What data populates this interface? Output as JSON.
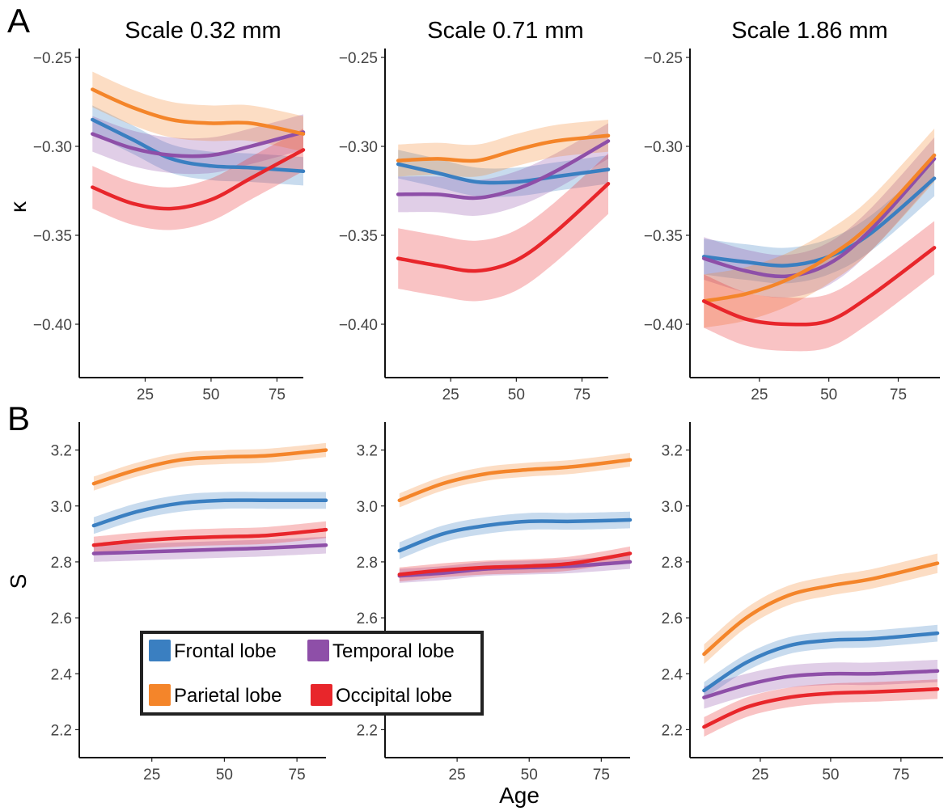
{
  "figure": {
    "row_letters": [
      "A",
      "B"
    ],
    "panel_titles": [
      "Scale 0.32 mm",
      "Scale 0.71 mm",
      "Scale 1.86 mm"
    ],
    "xlabel": "Age",
    "ylabel_top": "κ",
    "ylabel_bottom": "S",
    "legend": [
      {
        "label": "Frontal lobe",
        "color": "#3a7fc1"
      },
      {
        "label": "Temporal lobe",
        "color": "#8e4fa8"
      },
      {
        "label": "Parietal lobe",
        "color": "#f4852a"
      },
      {
        "label": "Occipital lobe",
        "color": "#e8262b"
      }
    ]
  },
  "chart_data": [
    {
      "type": "line",
      "panel": "A",
      "title": "Scale 0.32 mm",
      "xlabel": "",
      "ylabel": "κ",
      "xlim": [
        0,
        85
      ],
      "ylim": [
        -0.43,
        -0.245
      ],
      "xticks": [
        25,
        50,
        75
      ],
      "yticks": [
        -0.25,
        -0.3,
        -0.35,
        -0.4
      ],
      "x": [
        5,
        20,
        35,
        50,
        65,
        85
      ],
      "series": [
        {
          "name": "Frontal lobe",
          "color": "#3a7fc1",
          "values": [
            -0.285,
            -0.296,
            -0.307,
            -0.311,
            -0.312,
            -0.314
          ],
          "band": 0.008
        },
        {
          "name": "Temporal lobe",
          "color": "#8e4fa8",
          "values": [
            -0.293,
            -0.301,
            -0.305,
            -0.305,
            -0.3,
            -0.292
          ],
          "band": 0.01
        },
        {
          "name": "Parietal lobe",
          "color": "#f4852a",
          "values": [
            -0.268,
            -0.278,
            -0.285,
            -0.287,
            -0.287,
            -0.293
          ],
          "band": 0.01
        },
        {
          "name": "Occipital lobe",
          "color": "#e8262b",
          "values": [
            -0.323,
            -0.332,
            -0.335,
            -0.33,
            -0.318,
            -0.302
          ],
          "band": 0.012
        }
      ]
    },
    {
      "type": "line",
      "panel": "A",
      "title": "Scale 0.71 mm",
      "xlabel": "",
      "ylabel": "",
      "xlim": [
        0,
        85
      ],
      "ylim": [
        -0.43,
        -0.245
      ],
      "xticks": [
        25,
        50,
        75
      ],
      "yticks": [
        -0.25,
        -0.3,
        -0.35,
        -0.4
      ],
      "x": [
        5,
        20,
        35,
        50,
        65,
        85
      ],
      "series": [
        {
          "name": "Frontal lobe",
          "color": "#3a7fc1",
          "values": [
            -0.31,
            -0.315,
            -0.32,
            -0.32,
            -0.317,
            -0.313
          ],
          "band": 0.008
        },
        {
          "name": "Temporal lobe",
          "color": "#8e4fa8",
          "values": [
            -0.327,
            -0.327,
            -0.329,
            -0.324,
            -0.314,
            -0.297
          ],
          "band": 0.01
        },
        {
          "name": "Parietal lobe",
          "color": "#f4852a",
          "values": [
            -0.308,
            -0.307,
            -0.308,
            -0.302,
            -0.297,
            -0.294
          ],
          "band": 0.009
        },
        {
          "name": "Occipital lobe",
          "color": "#e8262b",
          "values": [
            -0.363,
            -0.367,
            -0.37,
            -0.364,
            -0.348,
            -0.321
          ],
          "band": 0.017
        }
      ]
    },
    {
      "type": "line",
      "panel": "A",
      "title": "Scale 1.86 mm",
      "xlabel": "",
      "ylabel": "",
      "xlim": [
        0,
        90
      ],
      "ylim": [
        -0.43,
        -0.245
      ],
      "xticks": [
        25,
        50,
        75
      ],
      "yticks": [
        -0.25,
        -0.3,
        -0.35,
        -0.4
      ],
      "x": [
        5,
        20,
        35,
        50,
        65,
        88
      ],
      "series": [
        {
          "name": "Frontal lobe",
          "color": "#3a7fc1",
          "values": [
            -0.362,
            -0.365,
            -0.367,
            -0.362,
            -0.349,
            -0.318
          ],
          "band": 0.01
        },
        {
          "name": "Temporal lobe",
          "color": "#8e4fa8",
          "values": [
            -0.363,
            -0.37,
            -0.373,
            -0.366,
            -0.347,
            -0.307
          ],
          "band": 0.012
        },
        {
          "name": "Parietal lobe",
          "color": "#f4852a",
          "values": [
            -0.387,
            -0.383,
            -0.375,
            -0.362,
            -0.344,
            -0.305
          ],
          "band": 0.015
        },
        {
          "name": "Occipital lobe",
          "color": "#e8262b",
          "values": [
            -0.387,
            -0.397,
            -0.4,
            -0.398,
            -0.384,
            -0.357
          ],
          "band": 0.015
        }
      ]
    },
    {
      "type": "line",
      "panel": "B",
      "title": "",
      "xlabel": "",
      "ylabel": "S",
      "xlim": [
        0,
        85
      ],
      "ylim": [
        2.1,
        3.3
      ],
      "xticks": [
        25,
        50,
        75
      ],
      "yticks": [
        2.2,
        2.4,
        2.6,
        2.8,
        3.0,
        3.2
      ],
      "x": [
        5,
        20,
        35,
        50,
        65,
        85
      ],
      "series": [
        {
          "name": "Frontal lobe",
          "color": "#3a7fc1",
          "values": [
            2.93,
            2.98,
            3.01,
            3.02,
            3.02,
            3.02
          ],
          "band": 0.03
        },
        {
          "name": "Temporal lobe",
          "color": "#8e4fa8",
          "values": [
            2.83,
            2.835,
            2.84,
            2.845,
            2.85,
            2.86
          ],
          "band": 0.03
        },
        {
          "name": "Parietal lobe",
          "color": "#f4852a",
          "values": [
            3.08,
            3.13,
            3.165,
            3.175,
            3.18,
            3.2
          ],
          "band": 0.025
        },
        {
          "name": "Occipital lobe",
          "color": "#e8262b",
          "values": [
            2.86,
            2.875,
            2.885,
            2.89,
            2.895,
            2.915
          ],
          "band": 0.03
        }
      ]
    },
    {
      "type": "line",
      "panel": "B",
      "title": "",
      "xlabel": "Age",
      "ylabel": "",
      "xlim": [
        0,
        85
      ],
      "ylim": [
        2.1,
        3.3
      ],
      "xticks": [
        25,
        50,
        75
      ],
      "yticks": [
        2.2,
        2.4,
        2.6,
        2.8,
        3.0,
        3.2
      ],
      "x": [
        5,
        20,
        35,
        50,
        65,
        85
      ],
      "series": [
        {
          "name": "Frontal lobe",
          "color": "#3a7fc1",
          "values": [
            2.84,
            2.9,
            2.93,
            2.945,
            2.945,
            2.95
          ],
          "band": 0.03
        },
        {
          "name": "Temporal lobe",
          "color": "#8e4fa8",
          "values": [
            2.75,
            2.76,
            2.775,
            2.78,
            2.785,
            2.8
          ],
          "band": 0.025
        },
        {
          "name": "Parietal lobe",
          "color": "#f4852a",
          "values": [
            3.02,
            3.08,
            3.115,
            3.13,
            3.14,
            3.165
          ],
          "band": 0.025
        },
        {
          "name": "Occipital lobe",
          "color": "#e8262b",
          "values": [
            2.755,
            2.77,
            2.78,
            2.785,
            2.795,
            2.83
          ],
          "band": 0.025
        }
      ]
    },
    {
      "type": "line",
      "panel": "B",
      "title": "",
      "xlabel": "",
      "ylabel": "",
      "xlim": [
        0,
        90
      ],
      "ylim": [
        2.1,
        3.3
      ],
      "xticks": [
        25,
        50,
        75
      ],
      "yticks": [
        2.2,
        2.4,
        2.6,
        2.8,
        3.0,
        3.2
      ],
      "x": [
        5,
        20,
        35,
        50,
        65,
        88
      ],
      "series": [
        {
          "name": "Frontal lobe",
          "color": "#3a7fc1",
          "values": [
            2.34,
            2.44,
            2.5,
            2.52,
            2.525,
            2.545
          ],
          "band": 0.03
        },
        {
          "name": "Temporal lobe",
          "color": "#8e4fa8",
          "values": [
            2.315,
            2.36,
            2.39,
            2.4,
            2.4,
            2.41
          ],
          "band": 0.04
        },
        {
          "name": "Parietal lobe",
          "color": "#f4852a",
          "values": [
            2.47,
            2.6,
            2.68,
            2.715,
            2.74,
            2.795
          ],
          "band": 0.035
        },
        {
          "name": "Occipital lobe",
          "color": "#e8262b",
          "values": [
            2.21,
            2.28,
            2.315,
            2.33,
            2.335,
            2.345
          ],
          "band": 0.035
        }
      ]
    }
  ]
}
